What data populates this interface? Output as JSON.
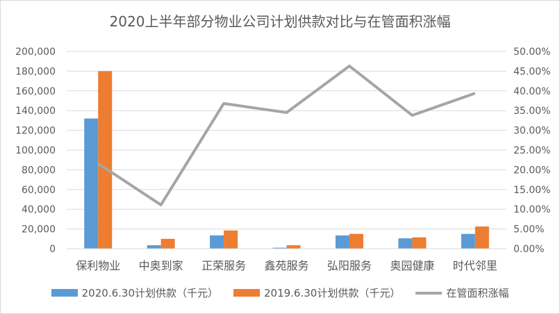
{
  "colors": {
    "series2020": "#5B9BD5",
    "series2019": "#ED7D31",
    "growth": "#A5A5A5",
    "grid": "#d9d9d9"
  },
  "chart_data": {
    "type": "bar",
    "title": "2020上半年部分物业公司计划供款对比与在管面积涨幅",
    "categories": [
      "保利物业",
      "中奥到家",
      "正荣服务",
      "鑫苑服务",
      "弘阳服务",
      "奥园健康",
      "时代邻里"
    ],
    "series": [
      {
        "name": "2020.6.30计划供款（千元）",
        "type": "bar",
        "axis": "left",
        "values": [
          132000,
          3500,
          13500,
          1000,
          13500,
          10500,
          15000
        ]
      },
      {
        "name": "2019.6.30计划供款（千元）",
        "type": "bar",
        "axis": "left",
        "values": [
          180000,
          10000,
          18500,
          3500,
          15000,
          11500,
          22500
        ]
      },
      {
        "name": "在管面积涨幅",
        "type": "line",
        "axis": "right",
        "values": [
          0.216,
          0.111,
          0.368,
          0.345,
          0.463,
          0.338,
          0.394
        ]
      }
    ],
    "ylim_left": [
      0,
      200000
    ],
    "ylim_right": [
      0,
      0.5
    ],
    "left_ticks": [
      "0",
      "20,000",
      "40,000",
      "60,000",
      "80,000",
      "100,000",
      "120,000",
      "140,000",
      "160,000",
      "180,000",
      "200,000"
    ],
    "right_ticks": [
      "0.00%",
      "5.00%",
      "10.00%",
      "15.00%",
      "20.00%",
      "25.00%",
      "30.00%",
      "35.00%",
      "40.00%",
      "45.00%",
      "50.00%"
    ],
    "grid": true,
    "legend_position": "bottom"
  }
}
